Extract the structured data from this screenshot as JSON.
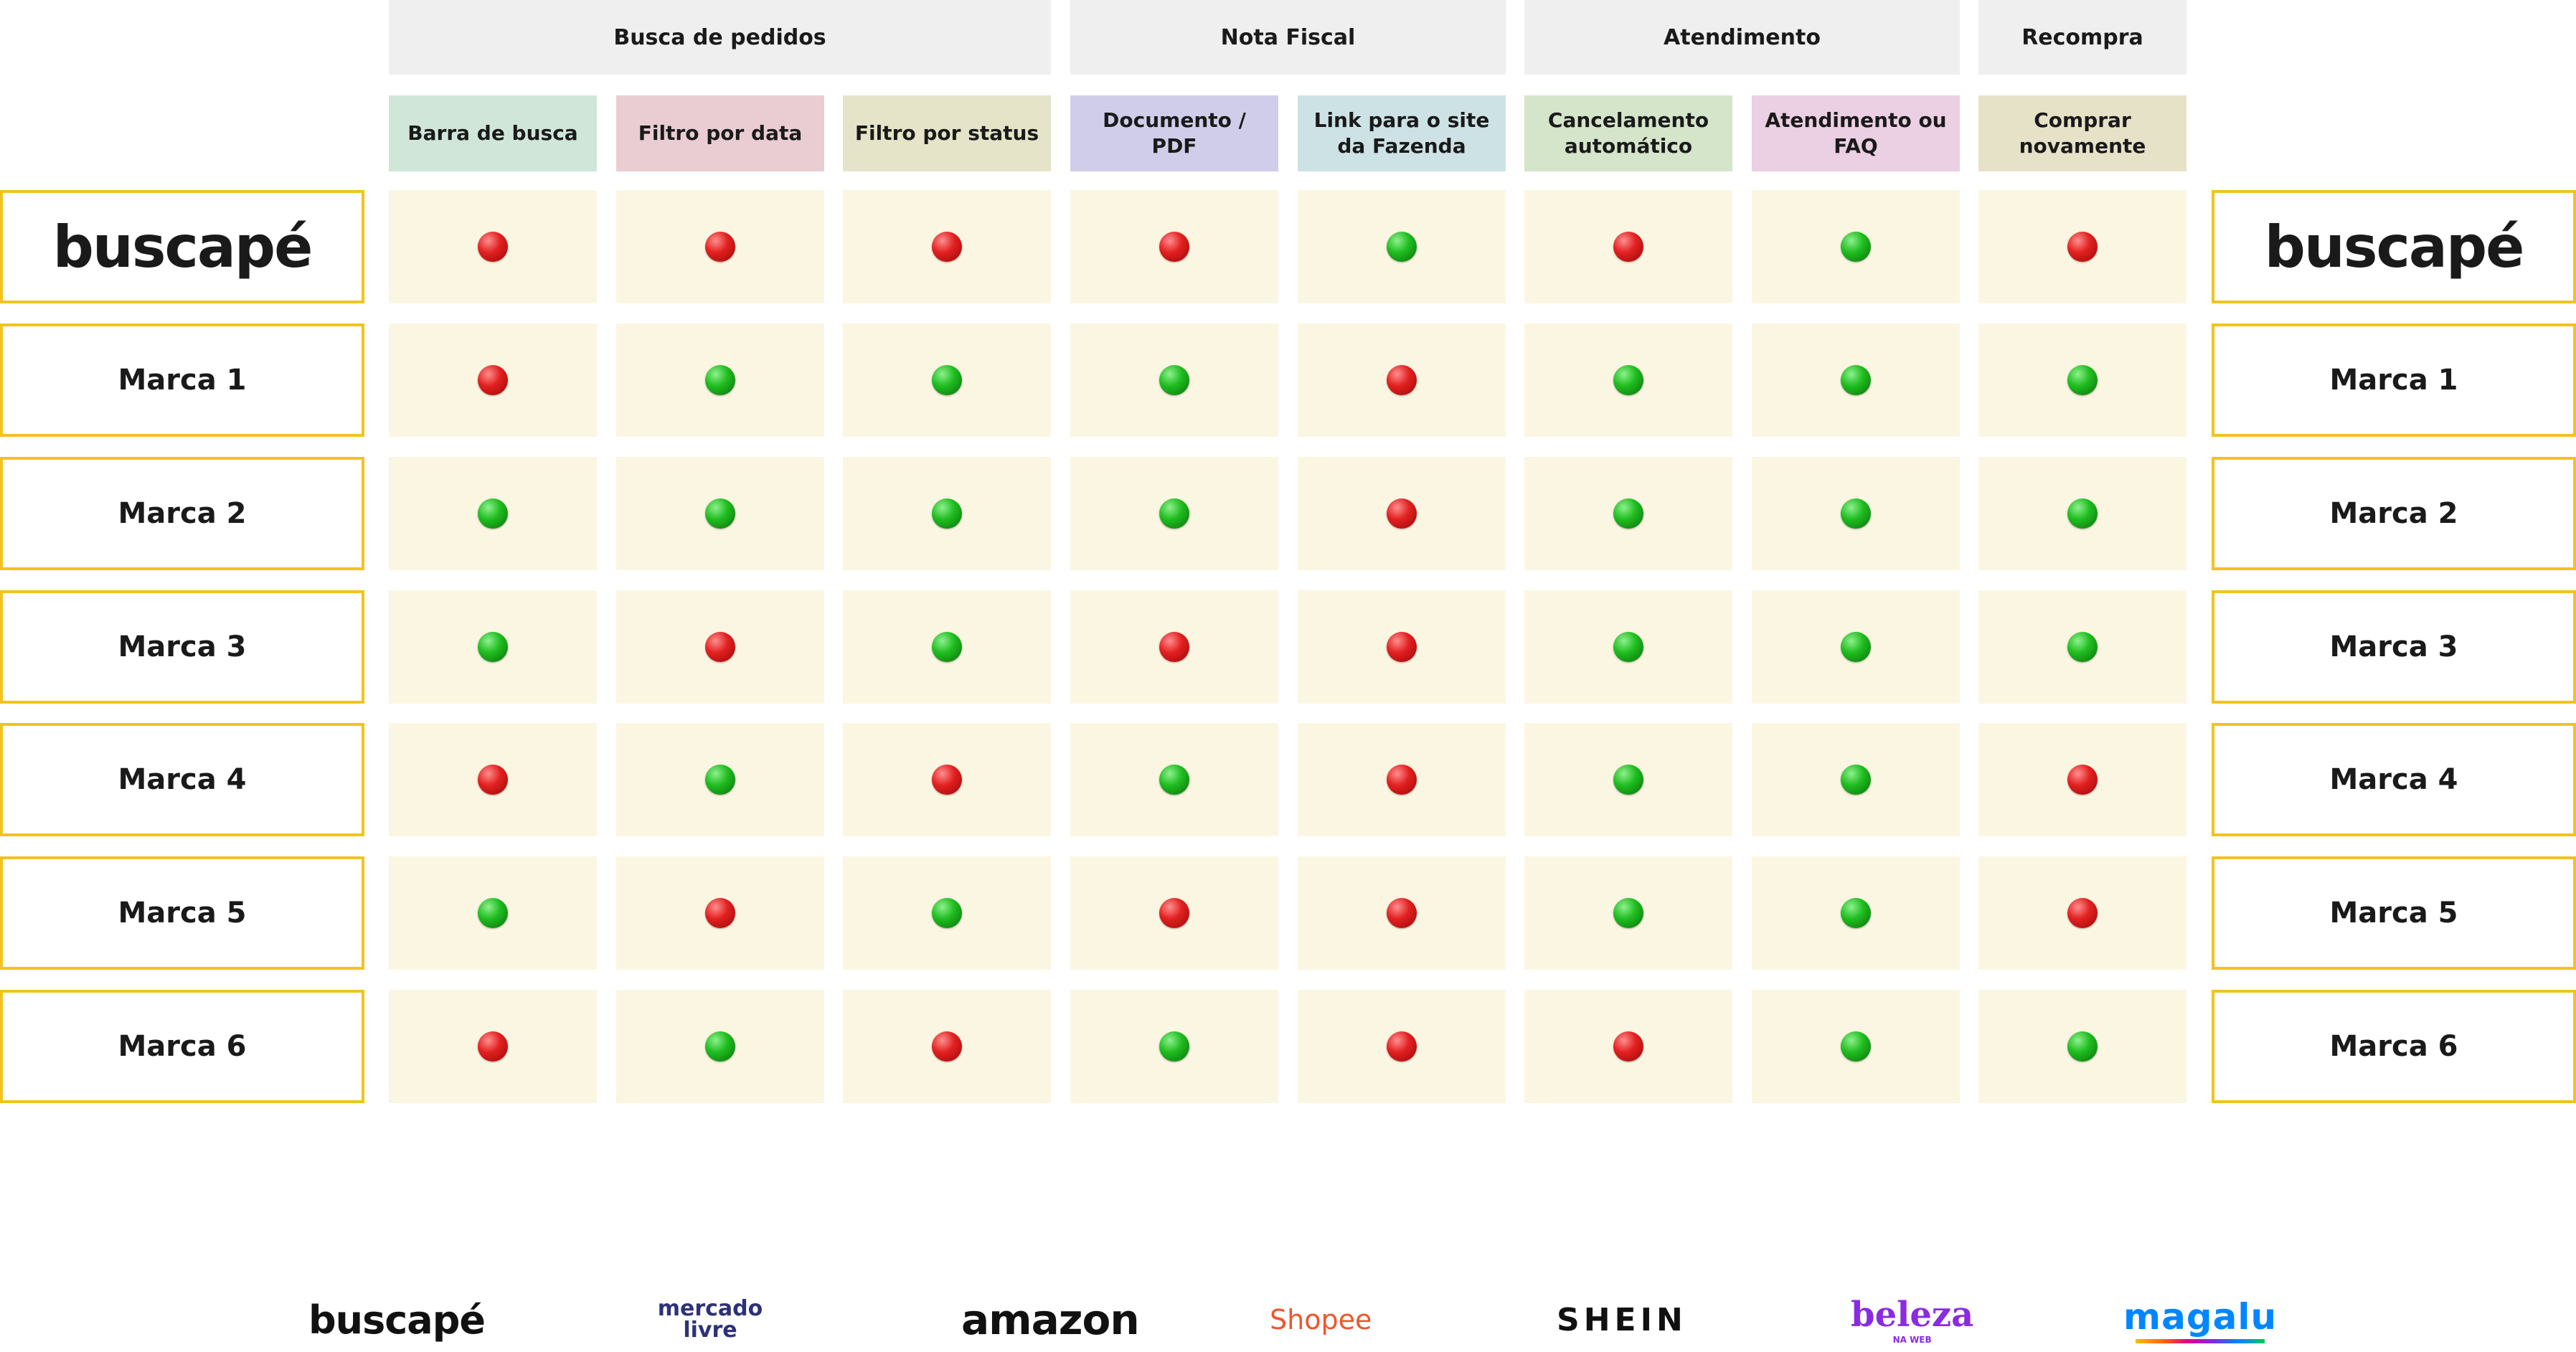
{
  "groups": [
    {
      "label": "Busca de pedidos"
    },
    {
      "label": "Nota Fiscal"
    },
    {
      "label": "Atendimento"
    },
    {
      "label": "Recompra"
    }
  ],
  "columns": [
    {
      "label": "Barra de busca",
      "color": "#cfe6d8"
    },
    {
      "label": "Filtro por data",
      "color": "#e9cdd2"
    },
    {
      "label": "Filtro por status",
      "color": "#e5e4c8"
    },
    {
      "label": "Documento / PDF",
      "color": "#cfcdea"
    },
    {
      "label": "Link para o site da Fazenda",
      "color": "#cde2e4"
    },
    {
      "label": "Cancelamento automático",
      "color": "#d4e5ca"
    },
    {
      "label": "Atendimento ou FAQ",
      "color": "#ebcfe2"
    },
    {
      "label": "Comprar novamente",
      "color": "#e6e2c8"
    }
  ],
  "rows": [
    {
      "label": "buscapé",
      "is_logo": true,
      "status": [
        "red",
        "red",
        "red",
        "red",
        "green",
        "red",
        "green",
        "red"
      ]
    },
    {
      "label": "Marca 1",
      "status": [
        "red",
        "green",
        "green",
        "green",
        "red",
        "green",
        "green",
        "green"
      ]
    },
    {
      "label": "Marca 2",
      "status": [
        "green",
        "green",
        "green",
        "green",
        "red",
        "green",
        "green",
        "green"
      ]
    },
    {
      "label": "Marca 3",
      "status": [
        "green",
        "red",
        "green",
        "red",
        "red",
        "green",
        "green",
        "green"
      ]
    },
    {
      "label": "Marca 4",
      "status": [
        "red",
        "green",
        "red",
        "green",
        "red",
        "green",
        "green",
        "red"
      ]
    },
    {
      "label": "Marca 5",
      "status": [
        "green",
        "red",
        "green",
        "red",
        "red",
        "green",
        "green",
        "red"
      ]
    },
    {
      "label": "Marca 6",
      "status": [
        "red",
        "green",
        "red",
        "green",
        "red",
        "red",
        "green",
        "green"
      ]
    }
  ],
  "status_colors": {
    "red": "#e22020",
    "green": "#1fbd1f"
  },
  "footer_logos": [
    {
      "label": "buscapé",
      "color": "#111111"
    },
    {
      "label": "mercado livre",
      "color": "#2d3277"
    },
    {
      "label": "amazon",
      "color": "#111111"
    },
    {
      "label": "Shopee",
      "color": "#f0562d"
    },
    {
      "label": "SHEIN",
      "color": "#111111"
    },
    {
      "label": "beleza",
      "sub": "NA WEB",
      "color": "#8a2be2"
    },
    {
      "label": "magalu",
      "color": "#0086ff"
    }
  ]
}
